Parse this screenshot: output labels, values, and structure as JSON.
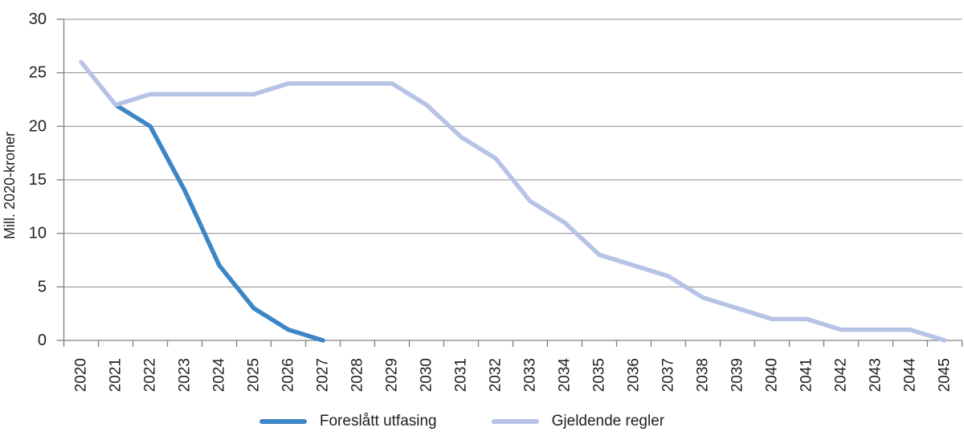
{
  "chart_data": {
    "type": "line",
    "ylabel": "Mill. 2020-kroner",
    "ylim": [
      0,
      30
    ],
    "ytick_step": 5,
    "grid": "horizontal-only",
    "legend_position": "bottom-center",
    "background_color": "#ffffff",
    "axis_color": "#808080",
    "grid_color": "#8c8c8c",
    "text_color": "#1f1f1f",
    "categories": [
      "2020",
      "2021",
      "2022",
      "2023",
      "2024",
      "2025",
      "2026",
      "2027",
      "2028",
      "2029",
      "2030",
      "2031",
      "2032",
      "2033",
      "2034",
      "2035",
      "2036",
      "2037",
      "2038",
      "2039",
      "2040",
      "2041",
      "2042",
      "2043",
      "2044",
      "2045"
    ],
    "series": [
      {
        "name": "Foreslått utfasing",
        "color": "#3d86c6",
        "values": [
          null,
          22,
          20,
          14,
          7,
          3,
          1,
          0,
          null,
          null,
          null,
          null,
          null,
          null,
          null,
          null,
          null,
          null,
          null,
          null,
          null,
          null,
          null,
          null,
          null,
          null
        ]
      },
      {
        "name": "Gjeldende regler",
        "color": "#b7c3e6",
        "values": [
          26,
          22,
          23,
          23,
          23,
          23,
          24,
          24,
          24,
          24,
          22,
          19,
          17,
          13,
          11,
          8,
          7,
          6,
          4,
          3,
          2,
          2,
          1,
          1,
          1,
          0
        ]
      }
    ]
  }
}
